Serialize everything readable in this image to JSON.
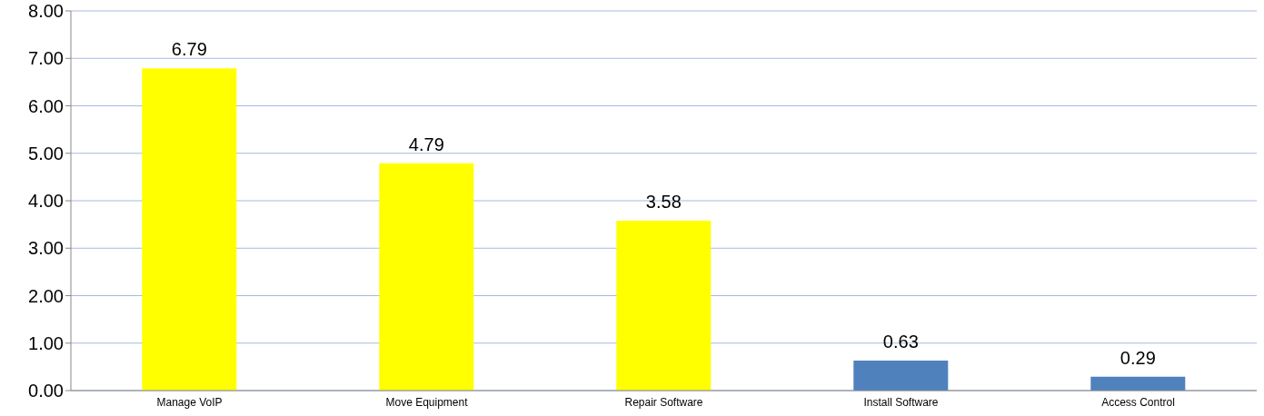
{
  "chart_data": {
    "type": "bar",
    "categories": [
      "Manage VoIP",
      "Move Equipment",
      "Repair Software",
      "Install Software",
      "Access Control"
    ],
    "values": [
      6.79,
      4.79,
      3.58,
      0.63,
      0.29
    ],
    "colors": [
      "#ffff00",
      "#ffff00",
      "#ffff00",
      "#4f81bd",
      "#4f81bd"
    ],
    "ylim": [
      0,
      8
    ],
    "yticks": [
      {
        "value": 0,
        "label": "0.00"
      },
      {
        "value": 1,
        "label": "1.00"
      },
      {
        "value": 2,
        "label": "2.00"
      },
      {
        "value": 3,
        "label": "3.00"
      },
      {
        "value": 4,
        "label": "4.00"
      },
      {
        "value": 5,
        "label": "5.00"
      },
      {
        "value": 6,
        "label": "6.00"
      },
      {
        "value": 7,
        "label": "7.00"
      },
      {
        "value": 8,
        "label": "8.00"
      }
    ],
    "grid": "y",
    "data_labels": true,
    "legend": false
  }
}
